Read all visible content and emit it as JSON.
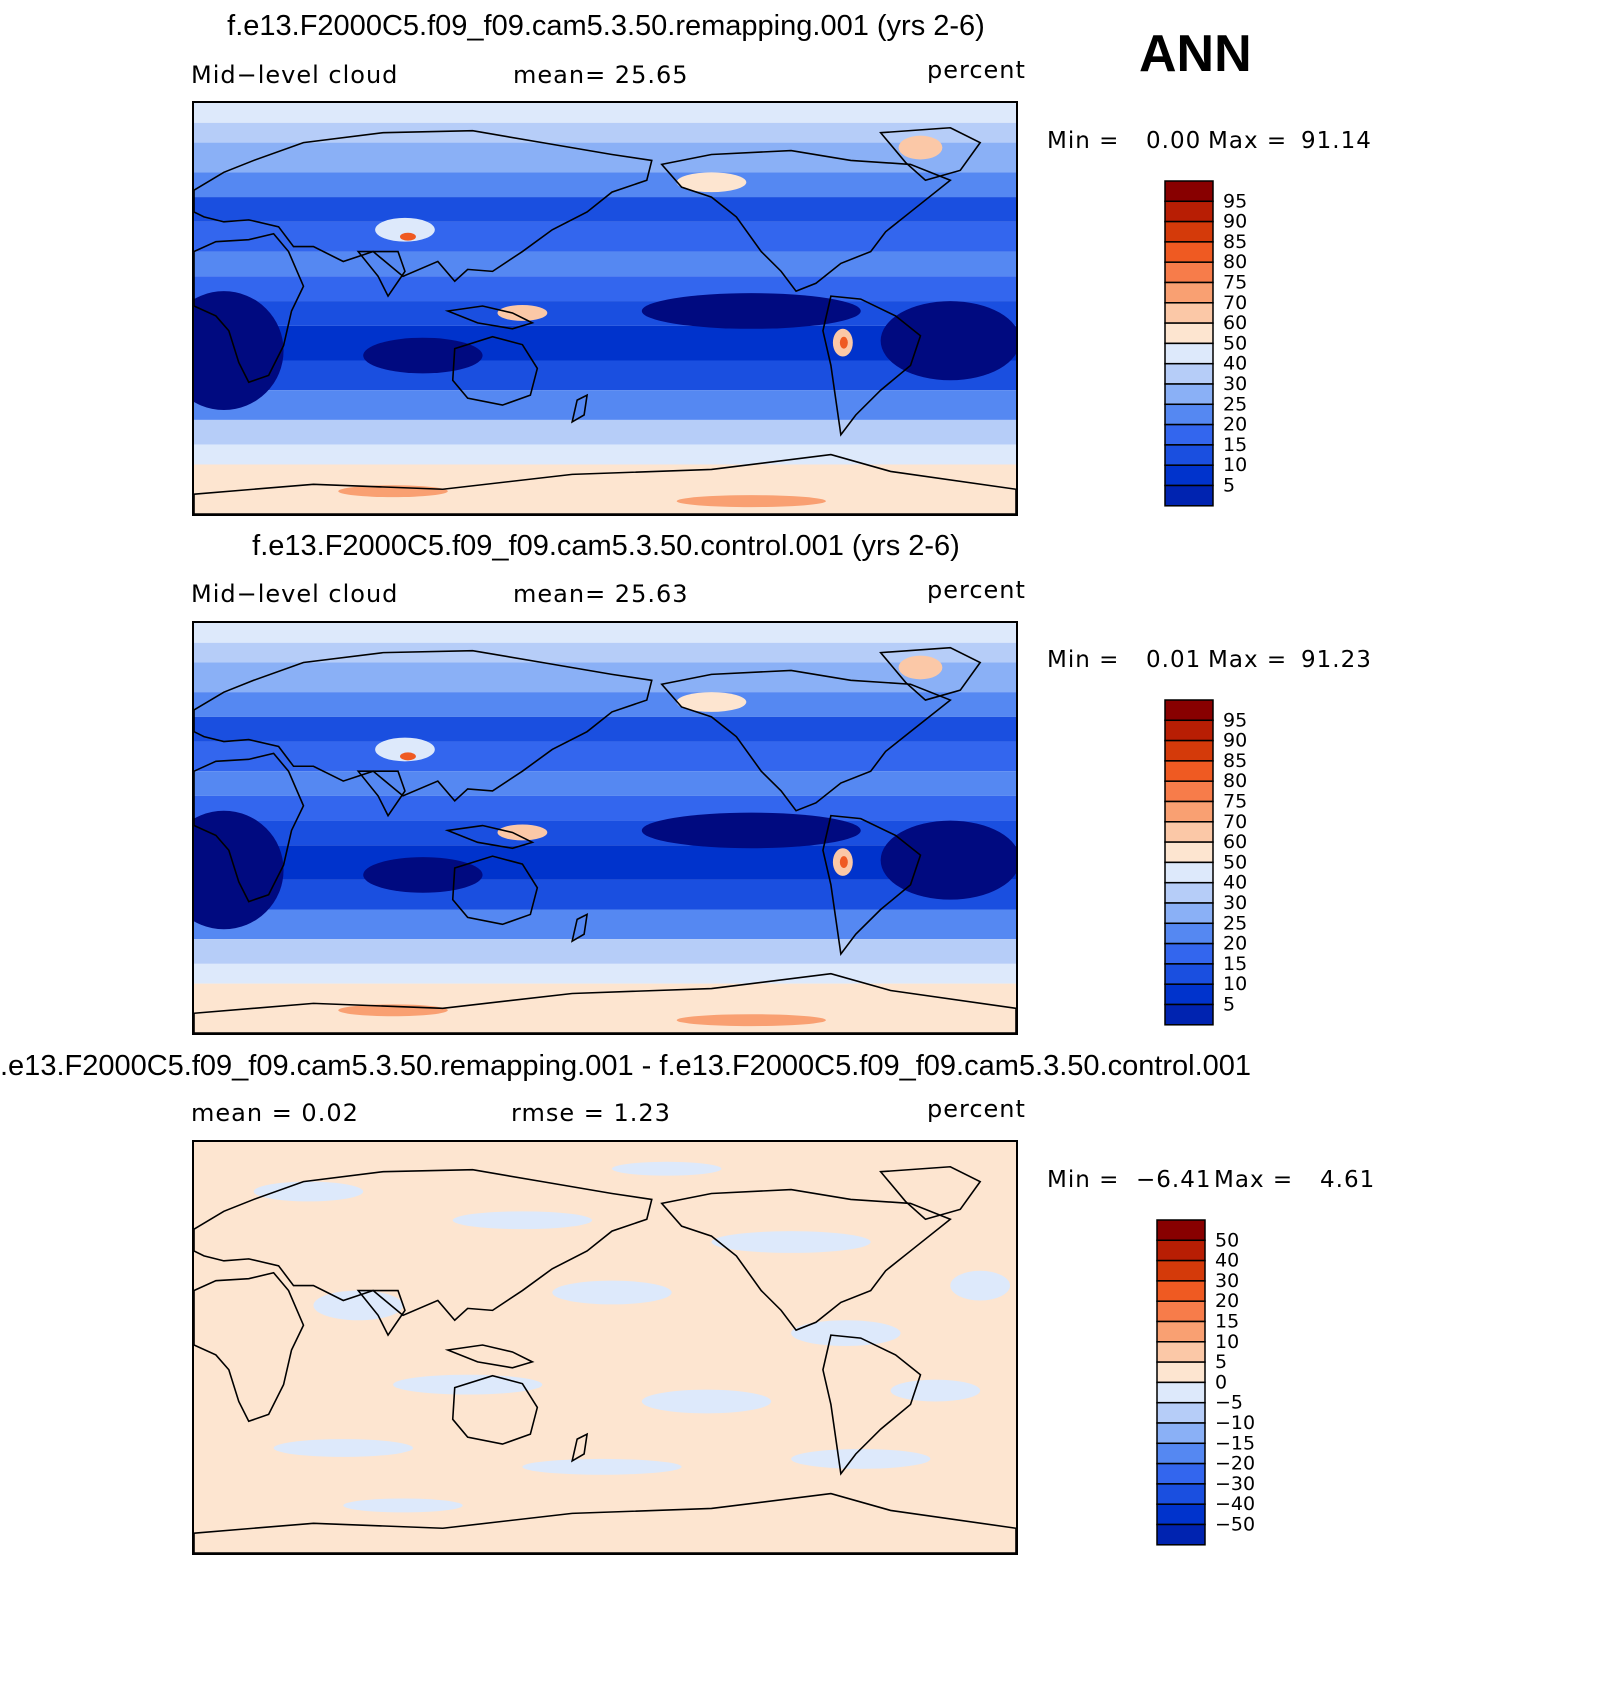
{
  "season": "ANN",
  "colors": {
    "blue_scale": [
      "#000a80",
      "#0023b0",
      "#0033cc",
      "#1a4fe0",
      "#3366ee",
      "#5588f2",
      "#8ab0f6",
      "#b6cdf8",
      "#dde9fb"
    ],
    "warm_scale": [
      "#fde5d0",
      "#fbc8a7",
      "#f9a072",
      "#f77c4a",
      "#ef5a22",
      "#d43a0a",
      "#b81e04",
      "#880000"
    ],
    "land_outline": "#000000"
  },
  "panels": [
    {
      "title": "f.e13.F2000C5.f09_f09.cam5.3.50.remapping.001 (yrs 2-6)",
      "left_label": "Mid−level  cloud",
      "center_label": "mean=   25.65",
      "units": "percent",
      "min_label": "Min  =",
      "min_value": "0.00",
      "max_label": "Max  =",
      "max_value": "91.14",
      "colorbar_labels": [
        "95",
        "90",
        "85",
        "80",
        "75",
        "70",
        "60",
        "50",
        "40",
        "30",
        "25",
        "20",
        "15",
        "10",
        "5"
      ],
      "map_type": "field"
    },
    {
      "title": "f.e13.F2000C5.f09_f09.cam5.3.50.control.001 (yrs 2-6)",
      "left_label": "Mid−level  cloud",
      "center_label": "mean=   25.63",
      "units": "percent",
      "min_label": "Min  =",
      "min_value": "0.01",
      "max_label": "Max  =",
      "max_value": "91.23",
      "colorbar_labels": [
        "95",
        "90",
        "85",
        "80",
        "75",
        "70",
        "60",
        "50",
        "40",
        "30",
        "25",
        "20",
        "15",
        "10",
        "5"
      ],
      "map_type": "field"
    },
    {
      "title": ".e13.F2000C5.f09_f09.cam5.3.50.remapping.001 - f.e13.F2000C5.f09_f09.cam5.3.50.control.001",
      "left_label": "mean  =     0.02",
      "center_label": "rmse  =      1.23",
      "units": "percent",
      "min_label": "Min  =",
      "min_value": "−6.41",
      "max_label": "Max  =",
      "max_value": "4.61",
      "colorbar_labels": [
        "50",
        "40",
        "30",
        "20",
        "15",
        "10",
        "5",
        "0",
        "−5",
        "−10",
        "−15",
        "−20",
        "−30",
        "−40",
        "−50"
      ],
      "map_type": "diff"
    }
  ]
}
